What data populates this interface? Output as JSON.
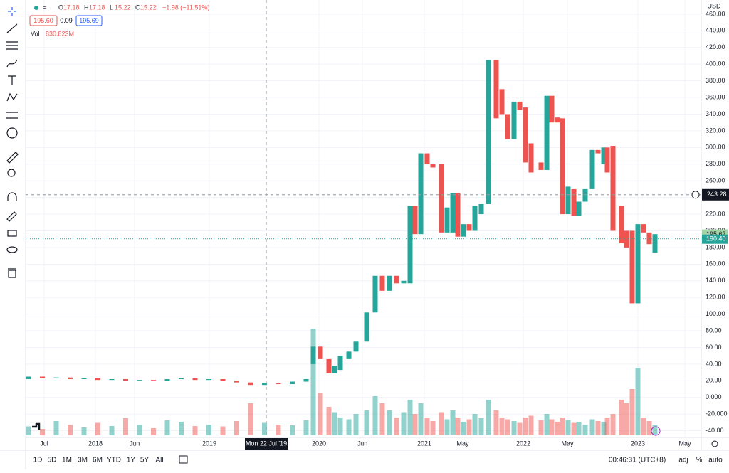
{
  "legend": {
    "ohlc": [
      {
        "label": "O",
        "value": 17.18
      },
      {
        "label": "H",
        "value": 17.18
      },
      {
        "label": "L",
        "value": 15.22
      },
      {
        "label": "C",
        "value": 15.22
      }
    ],
    "change": "−1.98 (−11.51%)",
    "bid": "195.60",
    "spread": "0.09",
    "ask": "195.69",
    "volume_title": "Vol",
    "volume_value": "830.823M"
  },
  "chart_data": {
    "type": "candlestick",
    "currency": "USD",
    "grid": true,
    "up_color": "#26a69a",
    "down_color": "#ef5350",
    "x": [
      0.4,
      2.35,
      4.3,
      6.25,
      8.2,
      10.15,
      12.1,
      14.05,
      16.0,
      17.95,
      19.9,
      21.85,
      23.8,
      25.75,
      27.7,
      29.65,
      31.6,
      33.55,
      35.5,
      37.45,
      39.4,
      40.4,
      41.4,
      42.6,
      43.4,
      44.2,
      45.4,
      46.4,
      47.9,
      49.1,
      50.1,
      51.1,
      52.1,
      53.1,
      54.0,
      54.7,
      55.5,
      56.4,
      57.2,
      58.4,
      59.2,
      60.0,
      60.7,
      61.5,
      62.3,
      63.1,
      64.0,
      65.0,
      66.1,
      66.9,
      67.7,
      68.6,
      69.4,
      70.2,
      71.0,
      72.4,
      73.2,
      73.9,
      74.7,
      75.4,
      76.2,
      77.0,
      77.7,
      78.6,
      79.6,
      80.4,
      81.2,
      81.7,
      82.5,
      83.7,
      84.4,
      85.2,
      86.0,
      86.8,
      87.6,
      88.4
    ],
    "open": [
      22,
      25,
      23,
      24,
      22,
      23,
      21,
      22,
      20,
      21,
      20,
      22,
      23,
      21,
      22,
      20,
      18,
      15,
      17,
      16,
      19,
      40,
      61,
      46,
      29,
      33,
      46,
      55,
      67,
      102,
      146,
      128,
      146,
      137,
      137,
      230,
      196,
      293,
      280,
      280,
      198,
      198,
      245,
      193,
      208,
      200,
      220,
      232,
      405,
      370,
      340,
      310,
      355,
      348,
      305,
      282,
      273,
      362,
      336,
      335,
      220,
      250,
      218,
      235,
      250,
      297,
      280,
      300,
      302,
      230,
      200,
      200,
      113,
      208,
      198,
      174
    ],
    "close": [
      25,
      23,
      24,
      22,
      23,
      21,
      22,
      20,
      21,
      20,
      22,
      23,
      21,
      22,
      20,
      18,
      15,
      17,
      16,
      19,
      22,
      61,
      46,
      29,
      38,
      50,
      55,
      67,
      102,
      146,
      128,
      146,
      137,
      140,
      230,
      196,
      293,
      280,
      276,
      198,
      228,
      245,
      193,
      208,
      200,
      230,
      232,
      405,
      335,
      340,
      310,
      355,
      345,
      282,
      270,
      273,
      362,
      330,
      330,
      220,
      253,
      218,
      235,
      250,
      297,
      293,
      300,
      270,
      200,
      185,
      180,
      113,
      208,
      198,
      184,
      196
    ],
    "volume": [
      250,
      180,
      400,
      300,
      220,
      350,
      260,
      480,
      300,
      200,
      420,
      380,
      260,
      300,
      250,
      400,
      900,
      350,
      300,
      280,
      420,
      3000,
      1200,
      800,
      650,
      500,
      450,
      600,
      700,
      1100,
      900,
      700,
      500,
      650,
      1000,
      600,
      900,
      500,
      400,
      650,
      450,
      700,
      500,
      380,
      450,
      600,
      480,
      1000,
      700,
      500,
      450,
      400,
      350,
      500,
      550,
      420,
      600,
      450,
      380,
      500,
      420,
      350,
      380,
      300,
      450,
      400,
      380,
      500,
      600,
      1000,
      900,
      1300,
      1900,
      500,
      400,
      300
    ],
    "xlim": [
      0,
      94.9
    ],
    "ylim": [
      -48,
      477
    ],
    "xticks": [
      {
        "value": 2.6,
        "label": "Jul"
      },
      {
        "value": 9.8,
        "label": "2018"
      },
      {
        "value": 15.3,
        "label": "Jun"
      },
      {
        "value": 25.8,
        "label": "2019"
      },
      {
        "value": 41.2,
        "label": "2020"
      },
      {
        "value": 47.3,
        "label": "Jun"
      },
      {
        "value": 56.0,
        "label": "2021"
      },
      {
        "value": 61.4,
        "label": "May"
      },
      {
        "value": 69.9,
        "label": "2022"
      },
      {
        "value": 76.1,
        "label": "May"
      },
      {
        "value": 86.0,
        "label": "2023"
      },
      {
        "value": 92.6,
        "label": "May"
      }
    ],
    "yticks": [
      {
        "value": 460,
        "label": "460.00"
      },
      {
        "value": 440,
        "label": "440.00"
      },
      {
        "value": 420,
        "label": "420.00"
      },
      {
        "value": 400,
        "label": "400.00"
      },
      {
        "value": 380,
        "label": "380.00"
      },
      {
        "value": 360,
        "label": "360.00"
      },
      {
        "value": 340,
        "label": "340.00"
      },
      {
        "value": 320,
        "label": "320.00"
      },
      {
        "value": 300,
        "label": "300.00"
      },
      {
        "value": 280,
        "label": "280.00"
      },
      {
        "value": 260,
        "label": "260.00"
      },
      {
        "value": 240,
        "label": "240.00"
      },
      {
        "value": 220,
        "label": "220.00"
      },
      {
        "value": 200,
        "label": "200.00"
      },
      {
        "value": 180,
        "label": "180.00"
      },
      {
        "value": 160,
        "label": "160.00"
      },
      {
        "value": 140,
        "label": "140.00"
      },
      {
        "value": 120,
        "label": "120.00"
      },
      {
        "value": 100,
        "label": "100.00"
      },
      {
        "value": 80,
        "label": "80.00"
      },
      {
        "value": 60,
        "label": "60.00"
      },
      {
        "value": 40,
        "label": "40.00"
      },
      {
        "value": 20,
        "label": "20.00"
      },
      {
        "value": 0,
        "label": "0.000"
      },
      {
        "value": -20,
        "label": "-20.000"
      },
      {
        "value": -40,
        "label": "-40.00"
      }
    ],
    "crosshair": {
      "x": 33.8,
      "x_label": "Mon 22 Jul '19",
      "y": 243.28
    },
    "prev_price": 195.67,
    "last_price": {
      "value": 190.4,
      "label": "190.40"
    }
  },
  "bottom_bar": {
    "ranges": [
      "1D",
      "5D",
      "1M",
      "3M",
      "6M",
      "YTD",
      "1Y",
      "5Y",
      "All"
    ],
    "clock": "00:46:31 (UTC+8)",
    "options": [
      "adj",
      "%",
      "auto"
    ]
  }
}
